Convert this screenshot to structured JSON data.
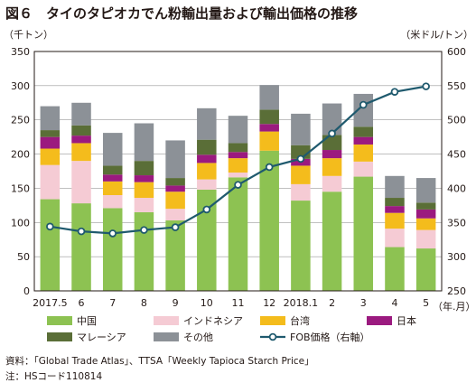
{
  "figure": {
    "title": "図６　タイのタピオカでん粉輸出量および輸出価格の推移",
    "source": "資料：「Global Trade Atlas」、TTSA「Weekly Tapioca Starch Price」",
    "note": "注：HSコード110814"
  },
  "chart_data": {
    "type": "bar",
    "stacked": true,
    "categories": [
      "2017.5",
      "6",
      "7",
      "8",
      "9",
      "10",
      "11",
      "12",
      "2018.1",
      "2",
      "3",
      "4",
      "5"
    ],
    "xlabel": "（年.月）",
    "ylabel_left": "（千トン）",
    "ylabel_right": "（米ドル/トン）",
    "ylim_left": [
      0,
      350
    ],
    "ylim_right": [
      250,
      600
    ],
    "yticks_left": [
      0,
      50,
      100,
      150,
      200,
      250,
      300,
      350
    ],
    "yticks_right": [
      250,
      300,
      350,
      400,
      450,
      500,
      550,
      600
    ],
    "grid": true,
    "legend_position": "bottom",
    "series": [
      {
        "name": "中国",
        "color": "#8dc252",
        "values": [
          134,
          128,
          121,
          115,
          103,
          148,
          166,
          205,
          132,
          145,
          167,
          64,
          62
        ]
      },
      {
        "name": "インドネシア",
        "color": "#f5cbd4",
        "values": [
          50,
          62,
          19,
          21,
          17,
          15,
          7,
          0,
          24,
          23,
          22,
          27,
          27
        ]
      },
      {
        "name": "台湾",
        "color": "#f4bc1c",
        "values": [
          24,
          26,
          20,
          23,
          25,
          24,
          21,
          28,
          27,
          26,
          25,
          23,
          17
        ]
      },
      {
        "name": "日本",
        "color": "#9b1a7f",
        "values": [
          17,
          11,
          10,
          10,
          9,
          12,
          9,
          11,
          10,
          12,
          11,
          10,
          13
        ]
      },
      {
        "name": "マレーシア",
        "color": "#5a6e37",
        "values": [
          10,
          15,
          13,
          21,
          11,
          22,
          13,
          21,
          20,
          22,
          15,
          12,
          10
        ]
      },
      {
        "name": "その他",
        "color": "#8c9197",
        "values": [
          35,
          33,
          48,
          55,
          55,
          46,
          40,
          36,
          46,
          46,
          48,
          32,
          36
        ]
      }
    ],
    "line": {
      "name": "FOB価格（右軸）",
      "axis": "right",
      "color": "#1f5a6e",
      "values": [
        344,
        337,
        334,
        339,
        343,
        369,
        405,
        431,
        443,
        480,
        522,
        541,
        549
      ]
    }
  }
}
